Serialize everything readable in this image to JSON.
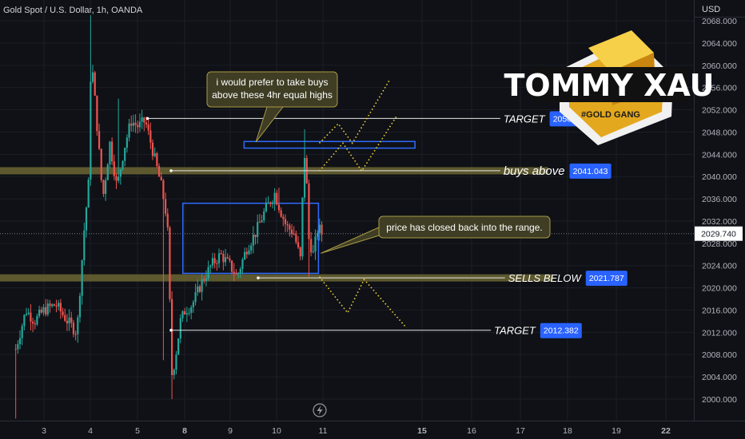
{
  "header": {
    "symbol_title": "Gold Spot / U.S. Dollar, 1h, OANDA",
    "currency": "USD"
  },
  "colors": {
    "background": "#0f1116",
    "bull": "#26a69a",
    "bear": "#ef5350",
    "zone": "#6b6532",
    "box": "#2f6bff",
    "label_bg": "#2962ff",
    "path": "#f2d43a",
    "callout_bg": "#3f3d24",
    "callout_border": "#a89a45"
  },
  "chart_data": {
    "type": "candlestick",
    "title": "Gold Spot / U.S. Dollar, 1h, OANDA",
    "y_unit": "USD",
    "ylim": [
      1996,
      2070
    ],
    "y_ticks": [
      "2068.000",
      "2064.000",
      "2060.000",
      "2056.000",
      "2052.000",
      "2048.000",
      "2044.000",
      "2040.000",
      "2036.000",
      "2032.000",
      "2028.000",
      "2024.000",
      "2020.000",
      "2016.000",
      "2012.000",
      "2008.000",
      "2004.000",
      "2000.000"
    ],
    "x_ticks": [
      {
        "label": "3",
        "day": 3,
        "bold": false
      },
      {
        "label": "4",
        "day": 4,
        "bold": false
      },
      {
        "label": "5",
        "day": 5,
        "bold": false
      },
      {
        "label": "8",
        "day": 8,
        "bold": true
      },
      {
        "label": "9",
        "day": 9,
        "bold": false
      },
      {
        "label": "10",
        "day": 10,
        "bold": false
      },
      {
        "label": "11",
        "day": 11,
        "bold": false
      },
      {
        "label": "15",
        "day": 15,
        "bold": true
      },
      {
        "label": "16",
        "day": 16,
        "bold": false
      },
      {
        "label": "17",
        "day": 17,
        "bold": false
      },
      {
        "label": "18",
        "day": 18,
        "bold": false
      },
      {
        "label": "19",
        "day": 19,
        "bold": false
      },
      {
        "label": "22",
        "day": 22,
        "bold": true
      }
    ],
    "current_price": "2029.740",
    "current_price_value": 2029.74,
    "close_path": [
      [
        2.4,
        2009
      ],
      [
        2.62,
        2016
      ],
      [
        2.8,
        2014
      ],
      [
        3.0,
        2016
      ],
      [
        3.25,
        2017
      ],
      [
        3.5,
        2014
      ],
      [
        3.7,
        2012
      ],
      [
        3.85,
        2030
      ],
      [
        3.95,
        2039
      ],
      [
        4.0,
        2062
      ],
      [
        4.1,
        2052
      ],
      [
        4.25,
        2036
      ],
      [
        4.4,
        2046
      ],
      [
        4.55,
        2038
      ],
      [
        4.7,
        2045
      ],
      [
        4.85,
        2050
      ],
      [
        5.0,
        2049
      ],
      [
        5.15,
        2050
      ],
      [
        5.3,
        2045
      ],
      [
        5.5,
        2038
      ],
      [
        5.62,
        2032
      ],
      [
        5.72,
        2004
      ],
      [
        5.8,
        2008
      ],
      [
        5.9,
        2014
      ],
      [
        6.0,
        2016
      ],
      [
        6.15,
        2017
      ],
      [
        6.35,
        2021
      ],
      [
        6.55,
        2024
      ],
      [
        6.75,
        2026
      ],
      [
        6.95,
        2024
      ],
      [
        7.1,
        2022
      ],
      [
        7.3,
        2027
      ],
      [
        7.5,
        2030
      ],
      [
        7.7,
        2034
      ],
      [
        7.9,
        2037
      ],
      [
        8.02,
        2034
      ],
      [
        8.15,
        2031
      ],
      [
        8.3,
        2030
      ],
      [
        8.45,
        2025
      ],
      [
        8.5,
        2038
      ],
      [
        8.55,
        2046
      ],
      [
        8.62,
        2029
      ],
      [
        8.72,
        2026
      ],
      [
        8.82,
        2031
      ],
      [
        8.9,
        2029.74
      ]
    ],
    "candle_highs": [
      [
        4.0,
        2069
      ],
      [
        4.6,
        2054
      ],
      [
        5.1,
        2052
      ],
      [
        8.55,
        2048.5
      ],
      [
        8.0,
        2038
      ]
    ],
    "candle_lows": [
      [
        2.4,
        1996.5
      ],
      [
        5.72,
        2000
      ],
      [
        5.55,
        2007
      ],
      [
        8.62,
        2022
      ]
    ],
    "levels": [
      {
        "id": "target-upper",
        "label": "TARGET",
        "value": 2050.44,
        "value_text": "2050.440",
        "start_day": 5.2,
        "end_day": 14.05,
        "style": "line"
      },
      {
        "id": "buys-above",
        "label": "buys above",
        "value": 2041.043,
        "value_text": "2041.043",
        "start_day": 5.7,
        "end_day": 14.05,
        "style": "zone"
      },
      {
        "id": "sells-below",
        "label": "SELLS BELOW",
        "value": 2021.787,
        "value_text": "2021.787",
        "start_day": 7.55,
        "end_day": 14.15,
        "style": "zone"
      },
      {
        "id": "target-lower",
        "label": "TARGET",
        "value": 2012.382,
        "value_text": "2012.382",
        "start_day": 5.7,
        "end_day": 13.85,
        "style": "line"
      }
    ],
    "range_box": {
      "start_day": 5.95,
      "end_day": 8.83,
      "top": 2035.2,
      "bottom": 2022.6
    },
    "supply_box": {
      "start_day": 7.25,
      "end_day": 10.88,
      "top": 2046.3,
      "bottom": 2045.4
    },
    "projection_paths": [
      [
        [
          8.85,
          2046
        ],
        [
          9.25,
          2049.5
        ],
        [
          9.55,
          2046
        ],
        [
          10.35,
          2057.5
        ]
      ],
      [
        [
          8.85,
          2041
        ],
        [
          9.35,
          2046
        ],
        [
          9.75,
          2041
        ],
        [
          10.5,
          2051
        ]
      ],
      [
        [
          8.85,
          2022
        ],
        [
          9.45,
          2015.5
        ],
        [
          9.8,
          2021.5
        ],
        [
          10.7,
          2012.8
        ]
      ]
    ],
    "callouts": [
      {
        "id": "buys-note",
        "text_lines": [
          "i would prefer to take buys",
          "above these 4hr equal highs"
        ],
        "anchor_day": 7.5,
        "anchor_value": 2046.2
      },
      {
        "id": "range-note",
        "text_lines": [
          "price has closed back into the range."
        ],
        "anchor_day": 8.88,
        "anchor_value": 2026.2
      }
    ]
  },
  "logo": {
    "title": "TOMMY XAU",
    "tagline": "#GOLD GANG"
  },
  "watermark_icon": "lightning-icon"
}
